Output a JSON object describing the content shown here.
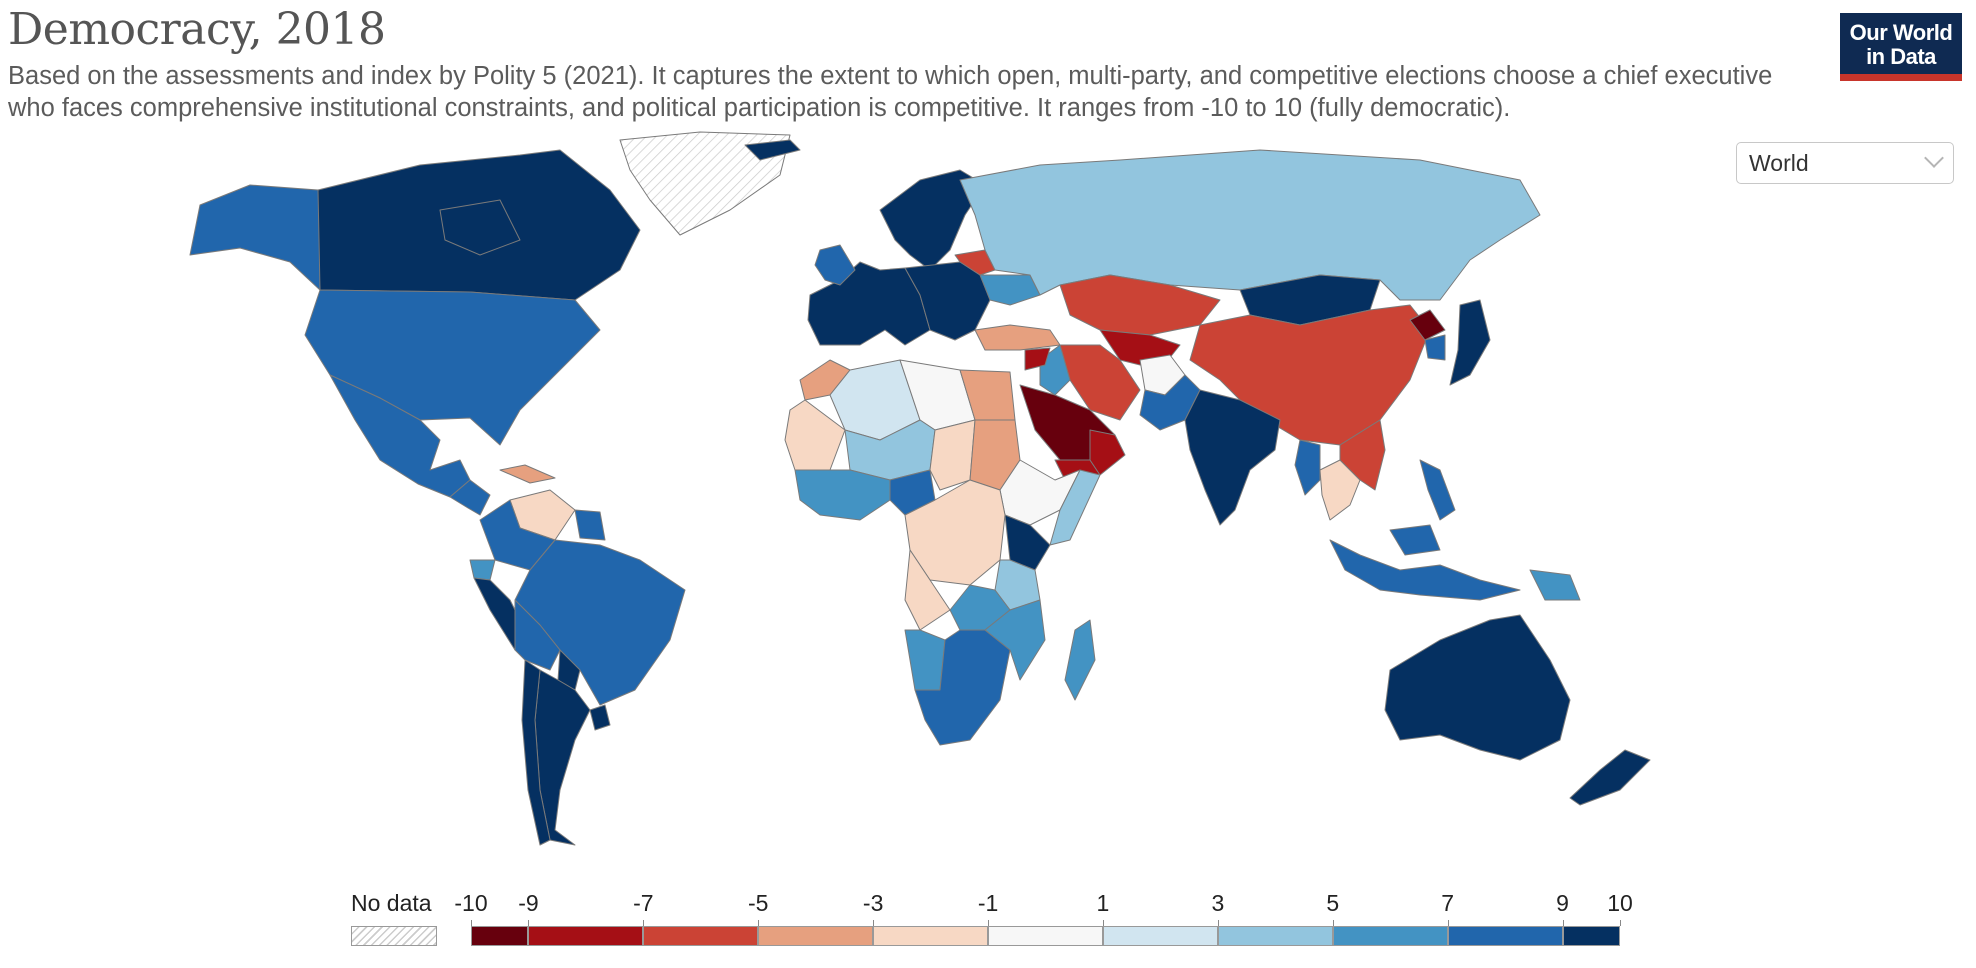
{
  "header": {
    "title": "Democracy, 2018",
    "subtitle": "Based on the assessments and index by Polity 5 (2021). It captures the extent to which open, multi-party, and competitive elections choose a chief executive who faces comprehensive institutional constraints, and political participation is competitive. It ranges from -10 to 10 (fully democratic).",
    "logo_line1": "Our World",
    "logo_line2": "in Data"
  },
  "controls": {
    "region_select": "World"
  },
  "colors": {
    "bins": [
      "#67000d",
      "#a50f15",
      "#cb4335",
      "#e6a07f",
      "#f7d8c4",
      "#f7f7f7",
      "#d1e5f0",
      "#92c5de",
      "#4393c3",
      "#2166ac",
      "#053061"
    ],
    "border": "#7a7a7a",
    "no_data_hatch": "#cccccc"
  },
  "legend": {
    "no_data_label": "No data",
    "ticks": [
      "-10",
      "-9",
      "-7",
      "-5",
      "-3",
      "-1",
      "1",
      "3",
      "5",
      "7",
      "9",
      "10"
    ]
  },
  "regions": [
    {
      "name": "Canada",
      "value": 10
    },
    {
      "name": "Greenland",
      "value": null
    },
    {
      "name": "Alaska (United States)",
      "value": 8
    },
    {
      "name": "United States",
      "value": 8
    },
    {
      "name": "Mexico",
      "value": 8
    },
    {
      "name": "Central America",
      "value": 7
    },
    {
      "name": "Cuba",
      "value": -5
    },
    {
      "name": "Venezuela",
      "value": -3
    },
    {
      "name": "Colombia",
      "value": 7
    },
    {
      "name": "Ecuador",
      "value": 5
    },
    {
      "name": "Peru",
      "value": 9
    },
    {
      "name": "Brazil",
      "value": 8
    },
    {
      "name": "Bolivia",
      "value": 7
    },
    {
      "name": "Paraguay",
      "value": 9
    },
    {
      "name": "Argentina",
      "value": 9
    },
    {
      "name": "Chile",
      "value": 10
    },
    {
      "name": "Uruguay",
      "value": 10
    },
    {
      "name": "Guyana / Suriname",
      "value": 7
    },
    {
      "name": "Iceland / Scandinavia",
      "value": 10
    },
    {
      "name": "Western Europe",
      "value": 10
    },
    {
      "name": "Ireland / United Kingdom",
      "value": 8
    },
    {
      "name": "Eastern Europe",
      "value": 9
    },
    {
      "name": "Belarus",
      "value": -7
    },
    {
      "name": "Ukraine",
      "value": 5
    },
    {
      "name": "Russia",
      "value": 4
    },
    {
      "name": "Turkey",
      "value": -4
    },
    {
      "name": "Kazakhstan / Central Asia",
      "value": -6
    },
    {
      "name": "Uzbekistan / Turkmenistan",
      "value": -9
    },
    {
      "name": "Mongolia",
      "value": 10
    },
    {
      "name": "China",
      "value": -7
    },
    {
      "name": "North Korea",
      "value": -10
    },
    {
      "name": "South Korea",
      "value": 8
    },
    {
      "name": "Japan",
      "value": 10
    },
    {
      "name": "Iran",
      "value": -7
    },
    {
      "name": "Iraq",
      "value": 6
    },
    {
      "name": "Syria",
      "value": -9
    },
    {
      "name": "Saudi Arabia",
      "value": -10
    },
    {
      "name": "Yemen",
      "value": -8
    },
    {
      "name": "Oman / UAE",
      "value": -8
    },
    {
      "name": "Afghanistan",
      "value": -1
    },
    {
      "name": "Pakistan",
      "value": 7
    },
    {
      "name": "India",
      "value": 9
    },
    {
      "name": "Myanmar",
      "value": 8
    },
    {
      "name": "Thailand / Cambodia",
      "value": -3
    },
    {
      "name": "Vietnam / Laos",
      "value": -7
    },
    {
      "name": "Malaysia / Indonesia",
      "value": 8
    },
    {
      "name": "Philippines",
      "value": 8
    },
    {
      "name": "Papua New Guinea",
      "value": 5
    },
    {
      "name": "Australia",
      "value": 10
    },
    {
      "name": "New Zealand",
      "value": 10
    },
    {
      "name": "Morocco",
      "value": -4
    },
    {
      "name": "Algeria",
      "value": 2
    },
    {
      "name": "Libya",
      "value": 0
    },
    {
      "name": "Egypt",
      "value": -4
    },
    {
      "name": "Western Sahara / Mauritania",
      "value": -2
    },
    {
      "name": "Mali / Niger",
      "value": 4
    },
    {
      "name": "Nigeria",
      "value": 7
    },
    {
      "name": "Chad",
      "value": -2
    },
    {
      "name": "Sudan",
      "value": -4
    },
    {
      "name": "West Africa coast",
      "value": 6
    },
    {
      "name": "Ethiopia / Horn",
      "value": 0
    },
    {
      "name": "Somalia",
      "value": 3
    },
    {
      "name": "DR Congo / Central Africa",
      "value": -3
    },
    {
      "name": "Kenya",
      "value": 9
    },
    {
      "name": "Tanzania",
      "value": 3
    },
    {
      "name": "Angola",
      "value": -2
    },
    {
      "name": "Zambia",
      "value": 6
    },
    {
      "name": "Namibia",
      "value": 6
    },
    {
      "name": "Botswana / South Africa",
      "value": 8
    },
    {
      "name": "Mozambique",
      "value": 5
    },
    {
      "name": "Madagascar",
      "value": 6
    }
  ]
}
